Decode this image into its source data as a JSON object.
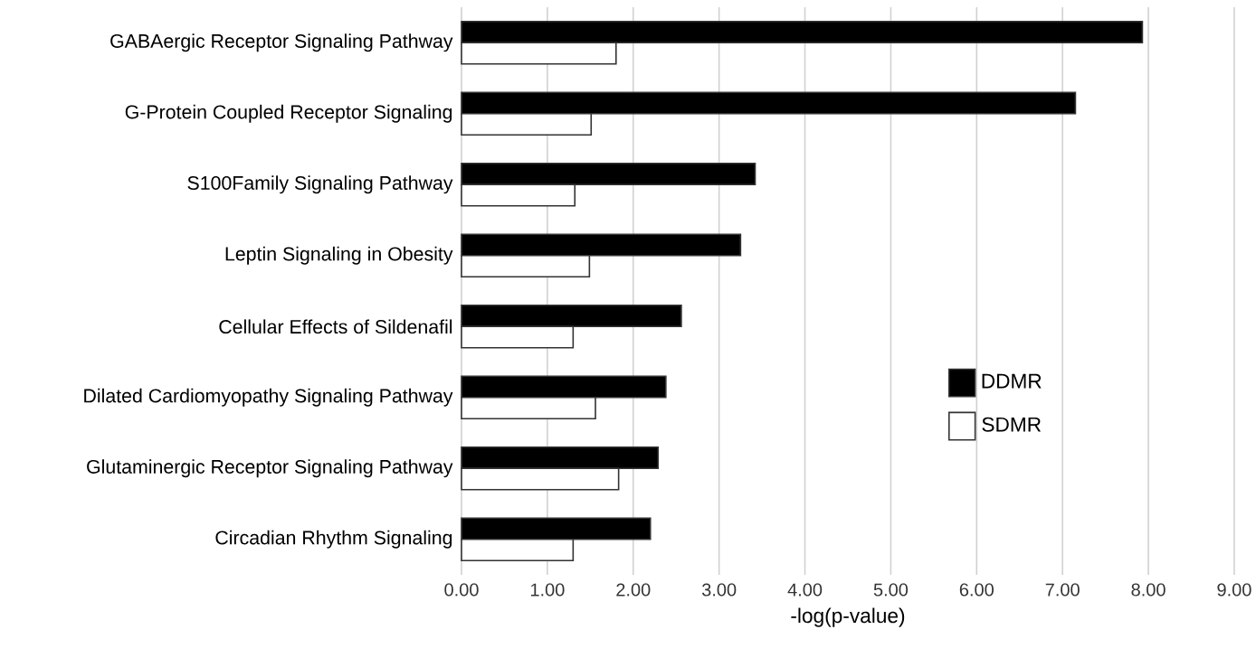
{
  "chart_data": {
    "type": "bar",
    "orientation": "horizontal",
    "xlabel": "-log(p-value)",
    "categories": [
      "GABAergic Receptor Signaling Pathway",
      "G-Protein Coupled Receptor Signaling",
      "S100Family Signaling Pathway",
      "Leptin Signaling in Obesity",
      "Cellular Effects of Sildenafil",
      "Dilated Cardiomyopathy Signaling Pathway",
      "Glutaminergic Receptor Signaling Pathway",
      "Circadian Rhythm Signaling"
    ],
    "series": [
      {
        "name": "DDMR",
        "color": "#000000",
        "values": [
          7.93,
          7.15,
          3.42,
          3.25,
          2.56,
          2.38,
          2.29,
          2.2
        ]
      },
      {
        "name": "SDMR",
        "color": "#ffffff",
        "values": [
          1.8,
          1.51,
          1.32,
          1.49,
          1.3,
          1.56,
          1.83,
          1.3
        ]
      }
    ],
    "xlim": [
      0,
      9
    ],
    "xticks": [
      {
        "value": 0,
        "label": "0.00"
      },
      {
        "value": 1,
        "label": "1.00"
      },
      {
        "value": 2,
        "label": "2.00"
      },
      {
        "value": 3,
        "label": "3.00"
      },
      {
        "value": 4,
        "label": "4.00"
      },
      {
        "value": 5,
        "label": "5.00"
      },
      {
        "value": 6,
        "label": "6.00"
      },
      {
        "value": 7,
        "label": "7.00"
      },
      {
        "value": 8,
        "label": "8.00"
      },
      {
        "value": 9,
        "label": "9.00"
      }
    ],
    "grid": "x",
    "legend": "right"
  }
}
